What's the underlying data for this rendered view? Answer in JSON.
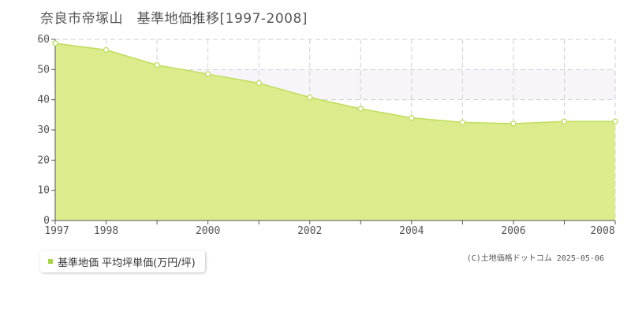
{
  "colors": {
    "area_fill": "#dcec8d",
    "line": "#bedd5c",
    "band": "#f7f5fa",
    "grid": "#cfcfcf",
    "legend_marker": "#a8d642"
  },
  "chart_data": {
    "type": "area",
    "title": "奈良市帝塚山　基準地価推移[1997-2008]",
    "xlabel": "",
    "ylabel": "",
    "x": [
      1997,
      1998,
      1999,
      2000,
      2001,
      2002,
      2003,
      2004,
      2005,
      2006,
      2007,
      2008
    ],
    "series": [
      {
        "name": "基準地価 平均坪単価(万円/坪)",
        "values": [
          58.7,
          56.5,
          51.5,
          48.5,
          45.5,
          40.8,
          37.0,
          34.0,
          32.5,
          32.1,
          32.8,
          32.8
        ]
      }
    ],
    "ylim": [
      0,
      60
    ],
    "yticks": [
      0,
      10,
      20,
      30,
      40,
      50,
      60
    ],
    "xtick_labels": [
      "1997",
      "1998",
      "2000",
      "2002",
      "2004",
      "2006",
      "2008"
    ],
    "grid": true,
    "legend": "bottom-left"
  },
  "legend": {
    "label": "基準地価 平均坪単価(万円/坪)"
  },
  "copyright": "(C)土地価格ドットコム 2025-05-06"
}
